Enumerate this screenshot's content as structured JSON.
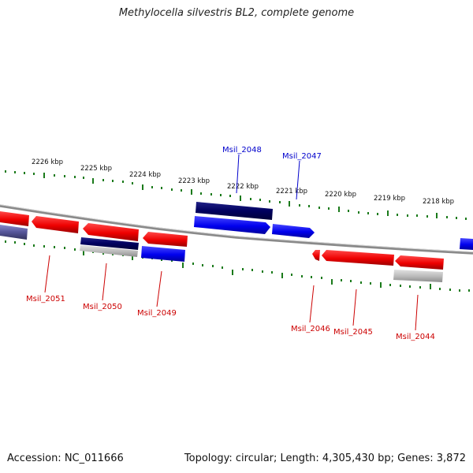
{
  "title": "Methylocella silvestris BL2, complete genome",
  "footer": {
    "accession": "Accession: NC_011666",
    "summary": "Topology: circular; Length: 4,305,430 bp; Genes: 3,872"
  },
  "colors": {
    "forward_strand": "#0000ee",
    "reverse_strand": "#ee0000",
    "navy_feature": "#00005e",
    "grey_feature": "#a8a8a8",
    "tick": "#1a7a1a",
    "backbone": "#888888",
    "label_forward": "#0000cc",
    "label_reverse": "#cc0000"
  },
  "scale_labels": [
    "2226 kbp",
    "2225 kbp",
    "2224 kbp",
    "2223 kbp",
    "2222 kbp",
    "2221 kbp",
    "2220 kbp",
    "2219 kbp",
    "2218 kbp"
  ],
  "genes": [
    {
      "name": "Msil_2048",
      "strand": "forward"
    },
    {
      "name": "Msil_2047",
      "strand": "forward"
    },
    {
      "name": "Msil_2051",
      "strand": "reverse"
    },
    {
      "name": "Msil_2050",
      "strand": "reverse"
    },
    {
      "name": "Msil_2049",
      "strand": "reverse"
    },
    {
      "name": "Msil_2046",
      "strand": "reverse"
    },
    {
      "name": "Msil_2045",
      "strand": "reverse"
    },
    {
      "name": "Msil_2044",
      "strand": "reverse"
    }
  ]
}
